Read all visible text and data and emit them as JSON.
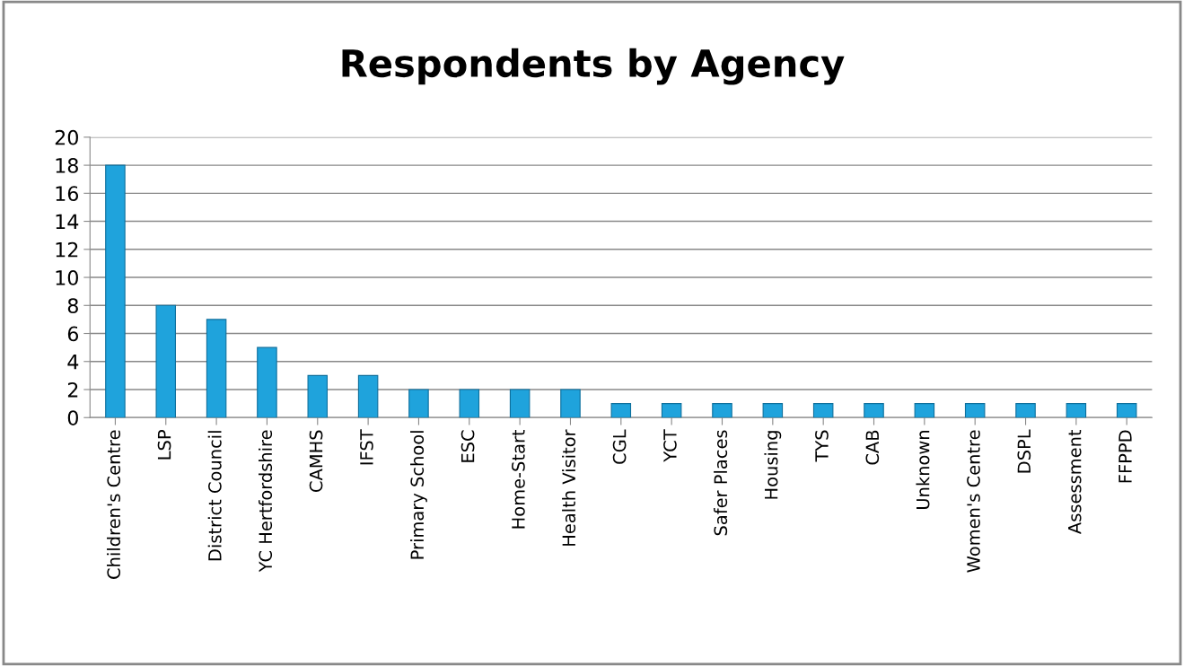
{
  "chart_data": {
    "type": "bar",
    "title": "Respondents by Agency",
    "categories": [
      "Children's Centre",
      "LSP",
      "District Council",
      "YC Hertfordshire",
      "CAMHS",
      "IFST",
      "Primary School",
      "ESC",
      "Home-Start",
      "Health Visitor",
      "CGL",
      "YCT",
      "Safer Places",
      "Housing",
      "TYS",
      "CAB",
      "Unknown",
      "Women's Centre",
      "DSPL",
      "Assessment",
      "FFPPD"
    ],
    "values": [
      18,
      8,
      7,
      5,
      3,
      3,
      2,
      2,
      2,
      2,
      1,
      1,
      1,
      1,
      1,
      1,
      1,
      1,
      1,
      1,
      1
    ],
    "color": "#1fa3dc",
    "ylim": [
      0,
      20
    ],
    "yticks": [
      0,
      2,
      4,
      6,
      8,
      10,
      12,
      14,
      16,
      18,
      20
    ],
    "grid": "y",
    "legend": false
  }
}
